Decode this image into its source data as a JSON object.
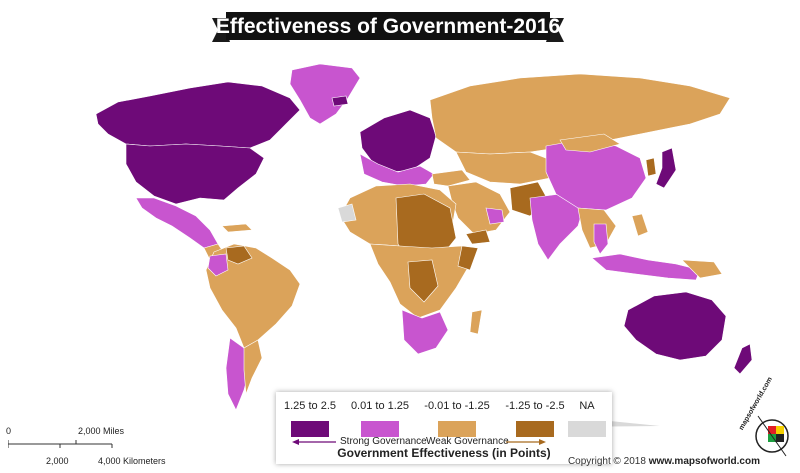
{
  "title": "Effectiveness of Government-2016",
  "legend": {
    "items": [
      {
        "label": "1.25 to 2.5",
        "color": "#6e0a78"
      },
      {
        "label": "0.01 to 1.25",
        "color": "#c855cf"
      },
      {
        "label": "-0.01 to -1.25",
        "color": "#dba35a"
      },
      {
        "label": "-1.25 to -2.5",
        "color": "#a86a1f"
      },
      {
        "label": "NA",
        "color": "#d9d9d9"
      }
    ],
    "strong_label": "Strong Governance",
    "weak_label": "Weak Governance",
    "axis_title": "Government Effectiveness (in Points)"
  },
  "scale_bar": {
    "miles_start": "0",
    "miles_end": "2,000 Miles",
    "km_mid": "2,000",
    "km_end": "4,000 Kilometers"
  },
  "copyright": {
    "prefix": "Copyright © 2018",
    "site": "www.mapsofworld.com"
  },
  "brand": {
    "text": "mapsofworld.com"
  }
}
